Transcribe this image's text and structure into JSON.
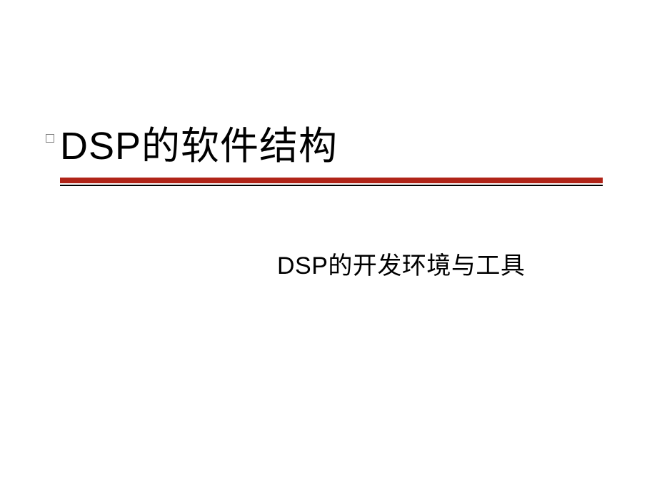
{
  "slide": {
    "title": "DSP的软件结构",
    "subtitle": "DSP的开发环境与工具",
    "title_fontsize": 54,
    "subtitle_fontsize": 34,
    "title_color": "#000000",
    "subtitle_color": "#000000",
    "underline_red_color": "#b02418",
    "underline_red_height": 8,
    "underline_black_color": "#000000",
    "underline_black_height": 2,
    "bullet_border_color": "#808080",
    "background_color": "#ffffff"
  }
}
